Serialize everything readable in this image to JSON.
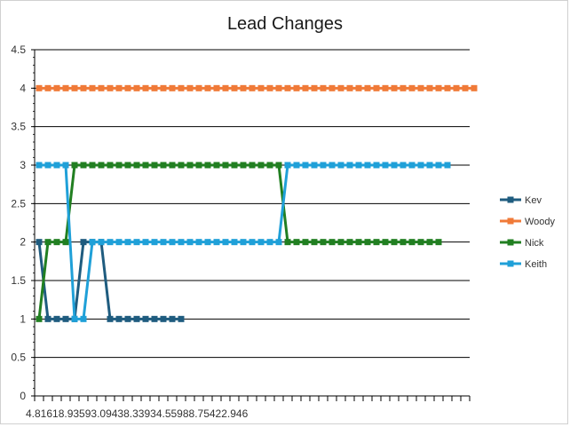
{
  "chart_data": {
    "type": "line",
    "title": "Lead Changes",
    "xlabel": "",
    "ylabel": "",
    "ylim": [
      0,
      4.5
    ],
    "yticks": [
      "0",
      "0.5",
      "1",
      "1.5",
      "2",
      "2.5",
      "3",
      "3.5",
      "4",
      "4.5"
    ],
    "x_tick_labels_visible": "4.81618.93593.09438.33934.55988.75422.946",
    "grid": "horizontal",
    "legend_position": "right",
    "num_points": 50,
    "series": [
      {
        "name": "Kev",
        "color": "#1f5c7f",
        "values": [
          2,
          1,
          1,
          1,
          1,
          2,
          2,
          2,
          1,
          1,
          1,
          1,
          1,
          1,
          1,
          1,
          1
        ]
      },
      {
        "name": "Woody",
        "color": "#f07a38",
        "values": [
          4,
          4,
          4,
          4,
          4,
          4,
          4,
          4,
          4,
          4,
          4,
          4,
          4,
          4,
          4,
          4,
          4,
          4,
          4,
          4,
          4,
          4,
          4,
          4,
          4,
          4,
          4,
          4,
          4,
          4,
          4,
          4,
          4,
          4,
          4,
          4,
          4,
          4,
          4,
          4,
          4,
          4,
          4,
          4,
          4,
          4,
          4,
          4,
          4,
          4
        ]
      },
      {
        "name": "Nick",
        "color": "#217f21",
        "values": [
          1,
          2,
          2,
          2,
          3,
          3,
          3,
          3,
          3,
          3,
          3,
          3,
          3,
          3,
          3,
          3,
          3,
          3,
          3,
          3,
          3,
          3,
          3,
          3,
          3,
          3,
          3,
          3,
          2,
          2,
          2,
          2,
          2,
          2,
          2,
          2,
          2,
          2,
          2,
          2,
          2,
          2,
          2,
          2,
          2,
          2
        ]
      },
      {
        "name": "Keith",
        "color": "#1fa0d8",
        "values": [
          3,
          3,
          3,
          3,
          1,
          1,
          2,
          2,
          2,
          2,
          2,
          2,
          2,
          2,
          2,
          2,
          2,
          2,
          2,
          2,
          2,
          2,
          2,
          2,
          2,
          2,
          2,
          2,
          3,
          3,
          3,
          3,
          3,
          3,
          3,
          3,
          3,
          3,
          3,
          3,
          3,
          3,
          3,
          3,
          3,
          3,
          3
        ]
      }
    ]
  }
}
